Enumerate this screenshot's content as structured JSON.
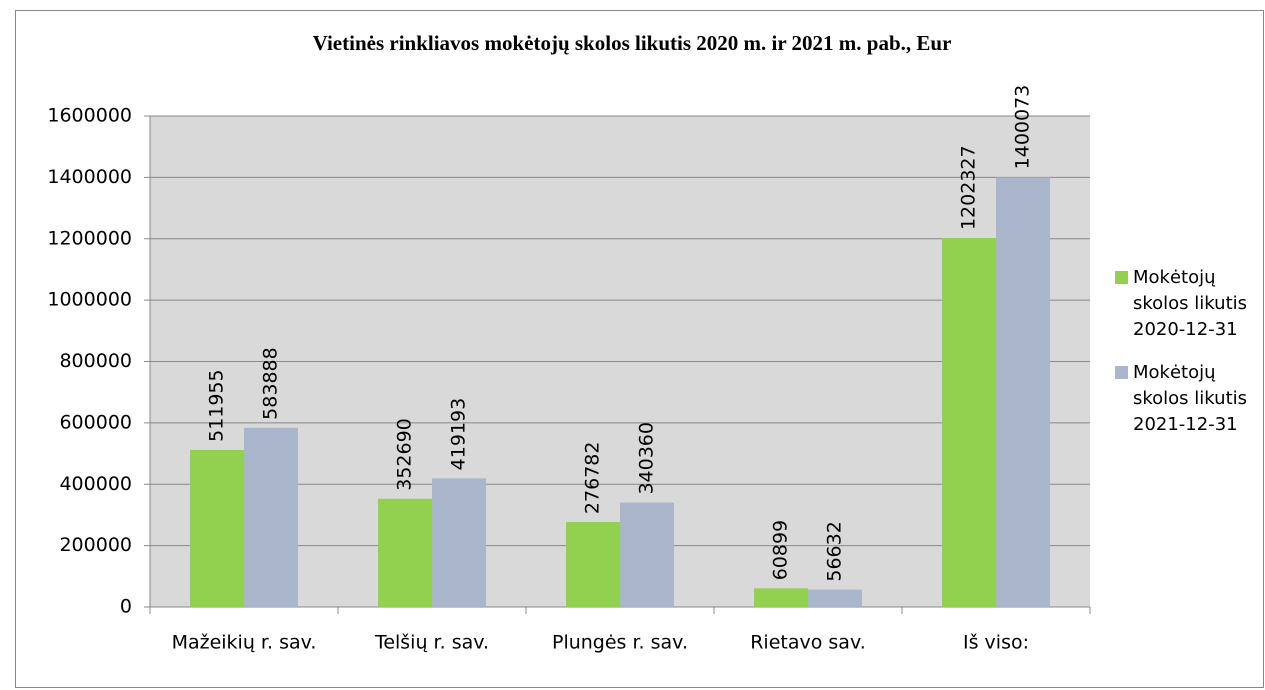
{
  "chart_data": {
    "type": "bar",
    "title": "Vietinės rinkliavos mokėtojų skolos likutis 2020 m. ir 2021 m. pab., Eur",
    "categories": [
      "Mažeikių r. sav.",
      "Telšių r. sav.",
      "Plungės r. sav.",
      "Rietavo sav.",
      "Iš viso:"
    ],
    "series": [
      {
        "name": "Mokėtojų skolos likutis 2020-12-31",
        "color": "#92d050",
        "values": [
          511955,
          352690,
          276782,
          60899,
          1202327
        ]
      },
      {
        "name": "Mokėtojų skolos likutis 2021-12-31",
        "color": "#a9b6cb",
        "values": [
          583888,
          419193,
          340360,
          56632,
          1400073
        ]
      }
    ],
    "ylim": [
      0,
      1600000
    ],
    "yticks": [
      0,
      200000,
      400000,
      600000,
      800000,
      1000000,
      1200000,
      1400000,
      1600000
    ],
    "grid": true,
    "legend": "right"
  }
}
